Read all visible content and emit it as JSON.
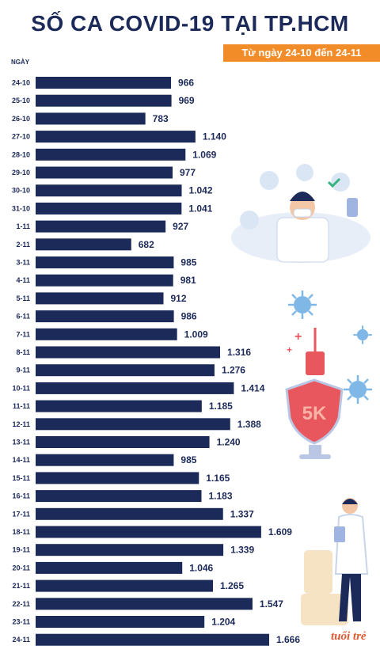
{
  "header": {
    "title": "SỐ CA COVID-19 TẠI TP.HCM",
    "subtitle": "Từ ngày 24-10 đến 24-11",
    "ylabel": "NGÀY"
  },
  "logo": {
    "text": "tuổi trẻ"
  },
  "colors": {
    "bar": "#1c2a5a",
    "accent": "#f28c28",
    "shield": "#e8575e"
  },
  "decorations": {
    "shield_text": "5K",
    "icons": [
      "doctor-with-mask-icon",
      "virus-icon",
      "syringe-icon",
      "shield-5k-icon",
      "doctor-with-clipboard-icon"
    ]
  },
  "chart_data": {
    "type": "bar",
    "orientation": "horizontal",
    "categories": [
      "24-10",
      "25-10",
      "26-10",
      "27-10",
      "28-10",
      "29-10",
      "30-10",
      "31-10",
      "1-11",
      "2-11",
      "3-11",
      "4-11",
      "5-11",
      "6-11",
      "7-11",
      "8-11",
      "9-11",
      "10-11",
      "11-11",
      "12-11",
      "13-11",
      "14-11",
      "15-11",
      "16-11",
      "17-11",
      "18-11",
      "19-11",
      "20-11",
      "21-11",
      "22-11",
      "23-11",
      "24-11"
    ],
    "values": [
      966,
      969,
      783,
      1140,
      1069,
      977,
      1042,
      1041,
      927,
      682,
      985,
      981,
      912,
      986,
      1009,
      1316,
      1276,
      1414,
      1185,
      1388,
      1240,
      985,
      1165,
      1183,
      1337,
      1609,
      1339,
      1046,
      1265,
      1547,
      1204,
      1666
    ],
    "labels": [
      "966",
      "969",
      "783",
      "1.140",
      "1.069",
      "977",
      "1.042",
      "1.041",
      "927",
      "682",
      "985",
      "981",
      "912",
      "986",
      "1.009",
      "1.316",
      "1.276",
      "1.414",
      "1.185",
      "1.388",
      "1.240",
      "985",
      "1.165",
      "1.183",
      "1.337",
      "1.609",
      "1.339",
      "1.046",
      "1.265",
      "1.547",
      "1.204",
      "1.666"
    ],
    "title": "SỐ CA COVID-19 TẠI TP.HCM",
    "xlabel": "",
    "ylabel": "NGÀY",
    "xlim": [
      0,
      1666
    ]
  }
}
